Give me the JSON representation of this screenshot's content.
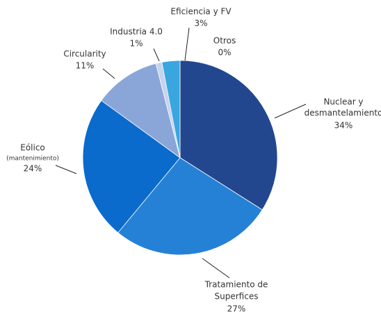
{
  "chart_data": {
    "type": "pie",
    "categories": [
      [
        "Nuclear y",
        "desmantelamiento"
      ],
      [
        "Tratamiento de",
        "Superfices"
      ],
      [
        "Eólico",
        "(mantenimiento)"
      ],
      [
        "Circularity"
      ],
      [
        "Industria 4.0"
      ],
      [
        "Eficiencia y FV"
      ],
      [
        "Otros"
      ]
    ],
    "values": [
      34,
      27,
      24,
      11,
      1,
      3,
      0
    ],
    "value_labels": [
      "34%",
      "27%",
      "24%",
      "11%",
      "1%",
      "3%",
      "0%"
    ],
    "colors": [
      "#23478f",
      "#2581d6",
      "#0a6bcc",
      "#8aa6d9",
      "#c6d3ec",
      "#3aa6e0",
      "#1f5fb0"
    ]
  }
}
